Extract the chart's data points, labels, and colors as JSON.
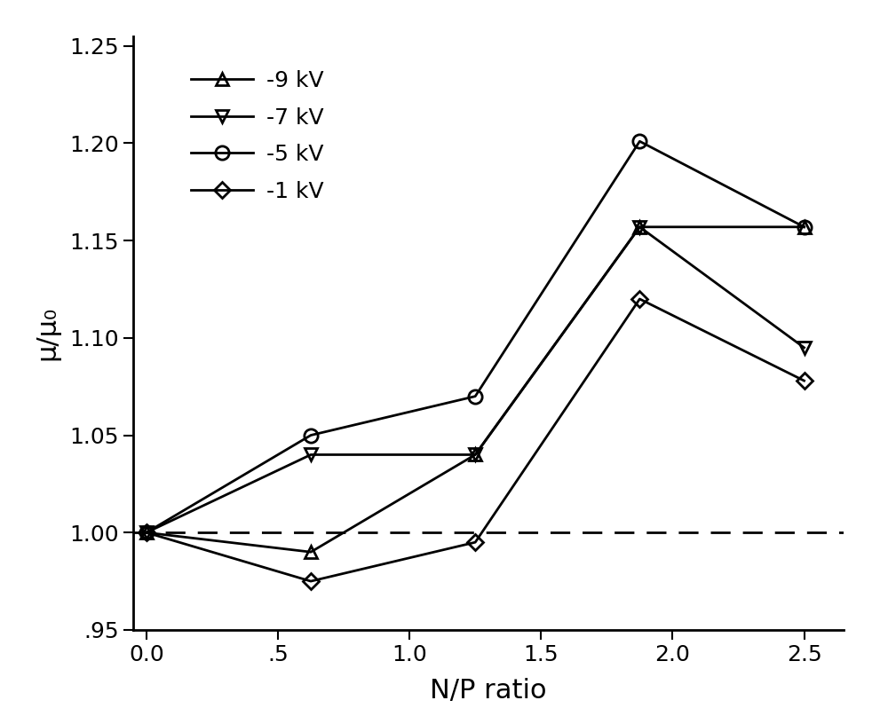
{
  "x": [
    0.0,
    0.625,
    1.25,
    1.875,
    2.5
  ],
  "series": {
    "-9 kV": [
      1.0,
      0.99,
      1.04,
      1.157,
      1.157
    ],
    "-7 kV": [
      1.0,
      1.04,
      1.04,
      1.157,
      1.095
    ],
    "-5 kV": [
      1.0,
      1.05,
      1.07,
      1.201,
      1.157
    ],
    "-1 kV": [
      1.0,
      0.975,
      0.995,
      1.12,
      1.078
    ]
  },
  "markers": {
    "-9 kV": "^",
    "-7 kV": "v",
    "-5 kV": "o",
    "-1 kV": "D"
  },
  "colors": {
    "-9 kV": "#000000",
    "-7 kV": "#000000",
    "-5 kV": "#000000",
    "-1 kV": "#000000"
  },
  "marker_sizes": {
    "-9 kV": 10,
    "-7 kV": 10,
    "-5 kV": 11,
    "-1 kV": 9
  },
  "xlabel": "N/P ratio",
  "ylabel": "μ/μ₀",
  "xlim": [
    -0.05,
    2.65
  ],
  "ylim": [
    0.95,
    1.255
  ],
  "xticks": [
    0.0,
    0.5,
    1.0,
    1.5,
    2.0,
    2.5
  ],
  "xticklabels": [
    "0.0",
    ".5",
    "1.0",
    "1.5",
    "2.0",
    "2.5"
  ],
  "yticks": [
    0.95,
    1.0,
    1.05,
    1.1,
    1.15,
    1.2,
    1.25
  ],
  "yticklabels": [
    ".95",
    "1.00",
    "1.05",
    "1.10",
    "1.15",
    "1.20",
    "1.25"
  ],
  "dashed_line_y": 1.0,
  "legend_labels": [
    "-9 kV",
    "-7 kV",
    "-5 kV",
    "-1 kV"
  ],
  "legend_loc": "upper left",
  "linewidth": 2.0,
  "background_color": "#ffffff",
  "title": "",
  "xlabel_fontsize": 22,
  "ylabel_fontsize": 22,
  "tick_fontsize": 18,
  "legend_fontsize": 18
}
